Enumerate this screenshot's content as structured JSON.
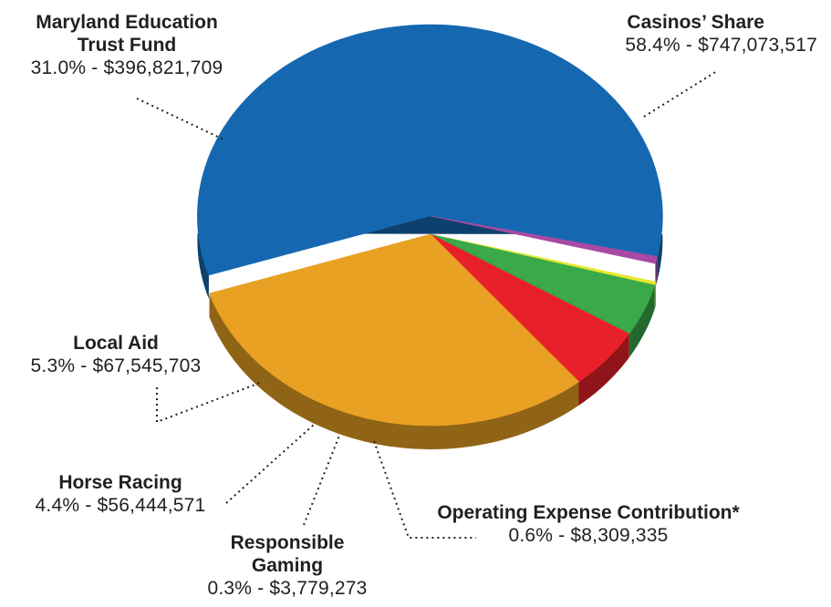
{
  "chart_data": {
    "type": "pie",
    "slices": [
      {
        "name": "Casinos’ Share",
        "percent": 58.4,
        "value": 747073517,
        "percent_label": "58.4%",
        "value_label": "$747,073,517",
        "color": "#1568b0",
        "exploded": true
      },
      {
        "name": "Operating Expense Contribution*",
        "percent": 0.6,
        "value": 8309335,
        "percent_label": "0.6%",
        "value_label": "$8,309,335",
        "color": "#a74aa3",
        "exploded": true
      },
      {
        "name": "Responsible Gaming",
        "percent": 0.3,
        "value": 3779273,
        "percent_label": "0.3%",
        "value_label": "$3,779,273",
        "color": "#e6e82a",
        "exploded": false
      },
      {
        "name": "Horse Racing",
        "percent": 4.4,
        "value": 56444571,
        "percent_label": "4.4%",
        "value_label": "$56,444,571",
        "color": "#39a94a",
        "exploded": false
      },
      {
        "name": "Local Aid",
        "percent": 5.3,
        "value": 67545703,
        "percent_label": "5.3%",
        "value_label": "$67,545,703",
        "color": "#e8202a",
        "exploded": false
      },
      {
        "name": "Maryland Education Trust Fund",
        "percent": 31.0,
        "value": 396821709,
        "percent_label": "31.0%",
        "value_label": "$396,821,709",
        "color": "#e8a123",
        "exploded": false
      }
    ],
    "labels": {
      "casinos": {
        "name": "Casinos’ Share",
        "value": "58.4% - $747,073,517"
      },
      "education": {
        "name_line1": "Maryland Education",
        "name_line2": "Trust Fund",
        "value": "31.0% - $396,821,709"
      },
      "local_aid": {
        "name": "Local Aid",
        "value": "5.3% - $67,545,703"
      },
      "horse_racing": {
        "name": "Horse Racing",
        "value": "4.4% - $56,444,571"
      },
      "responsible_gaming": {
        "name_line1": "Responsible",
        "name_line2": "Gaming",
        "value": "0.3% - $3,779,273"
      },
      "operating_expense": {
        "name": "Operating Expense Contribution*",
        "value": "0.6% - $8,309,335"
      }
    }
  }
}
